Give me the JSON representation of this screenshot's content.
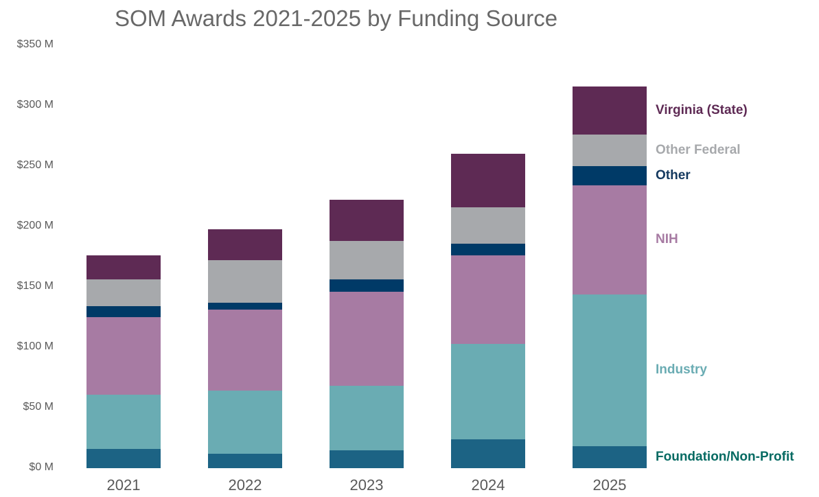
{
  "chart_data": {
    "type": "bar",
    "stacked": true,
    "title": "SOM Awards 2021-2025 by Funding Source",
    "categories": [
      "2021",
      "2022",
      "2023",
      "2024",
      "2025"
    ],
    "series": [
      {
        "name": "Foundation/Non-Profit",
        "values": [
          16,
          12,
          15,
          24,
          18
        ],
        "bar_color": "#1C6384",
        "label_color": "#076B63"
      },
      {
        "name": "Industry",
        "values": [
          45,
          52,
          53,
          79,
          126
        ],
        "bar_color": "#6AACB3",
        "label_color": "#6AACB3"
      },
      {
        "name": "NIH",
        "values": [
          64,
          67,
          78,
          73,
          90
        ],
        "bar_color": "#A77BA3",
        "label_color": "#A77BA3"
      },
      {
        "name": "Other",
        "values": [
          9,
          6,
          10,
          10,
          16
        ],
        "bar_color": "#003A67",
        "label_color": "#14395F"
      },
      {
        "name": "Other Federal",
        "values": [
          22,
          35,
          32,
          30,
          26
        ],
        "bar_color": "#A7A9AC",
        "label_color": "#A7A9AC"
      },
      {
        "name": "Virginia (State)",
        "values": [
          20,
          26,
          34,
          44,
          40
        ],
        "bar_color": "#5E2A54",
        "label_color": "#5E2A54"
      }
    ],
    "y_axis": {
      "tick_values": [
        0,
        50,
        100,
        150,
        200,
        250,
        300,
        350
      ],
      "tick_labels": [
        "$0 M",
        "$50 M",
        "$100 M",
        "$150 M",
        "$200 M",
        "$250 M",
        "$300 M",
        "$350 M"
      ],
      "ylim": [
        0,
        350
      ],
      "units": "$M"
    },
    "grid": false,
    "legend_position": "right-of-last-bar"
  },
  "text_colors": {
    "title": "#686868",
    "axis": "#595959"
  }
}
